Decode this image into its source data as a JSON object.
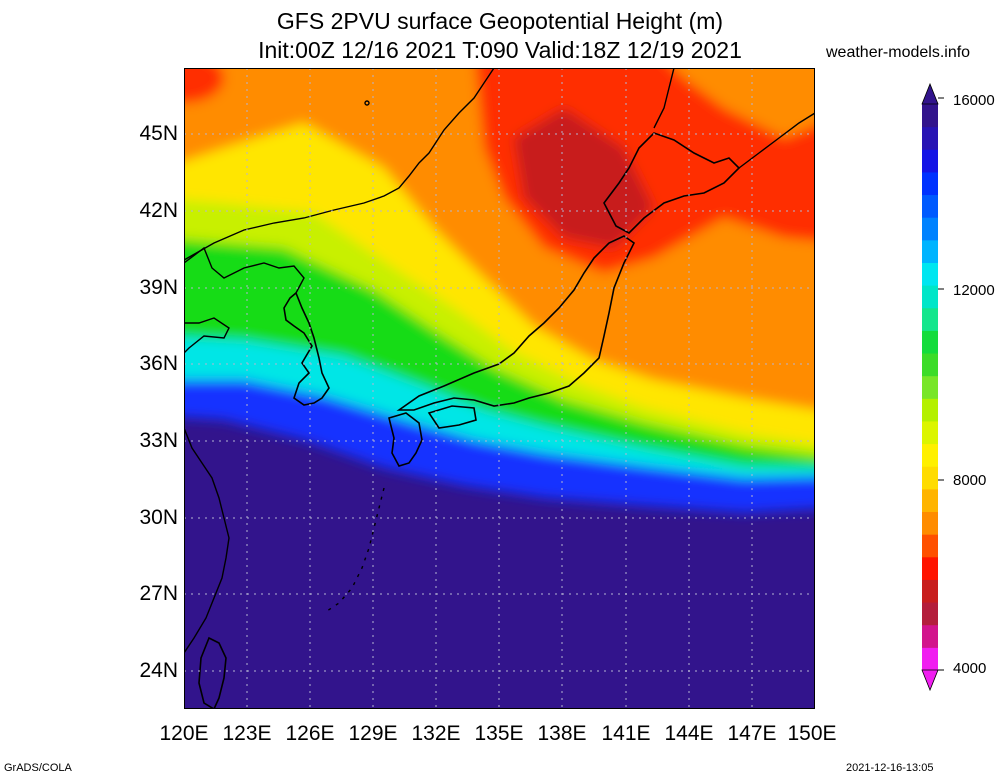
{
  "title_line1": "GFS 2PVU surface Geopotential Height (m)",
  "title_line2": "Init:00Z 12/16 2021 T:090 Valid:18Z 12/19 2021",
  "site": "weather-models.info",
  "footer_left": "GrADS/COLA",
  "footer_right": "2021-12-16-13:05",
  "map": {
    "lon_range": [
      120,
      150
    ],
    "lat_range": [
      22.5,
      47.5
    ],
    "lat_labels": [
      "45N",
      "42N",
      "39N",
      "36N",
      "33N",
      "30N",
      "27N",
      "24N"
    ],
    "lon_labels": [
      "120E",
      "123E",
      "126E",
      "129E",
      "132E",
      "135E",
      "138E",
      "141E",
      "144E",
      "147E",
      "150E"
    ],
    "gridlines": "dotted",
    "colors": {
      "red_core": "#c81e1e",
      "red": "#ff2d00",
      "orange": "#ff8c00",
      "yellow": "#ffe600",
      "yellow_green": "#c8f000",
      "green": "#14dc14",
      "cyan": "#00e6e6",
      "blue": "#1432ff",
      "navy": "#32148c",
      "coastline": "#000000"
    }
  },
  "colorbar": {
    "labels": [
      "16000",
      "12000",
      "8000",
      "4000"
    ],
    "colors": [
      "#f01ef0",
      "#d2148c",
      "#b41e3c",
      "#c81e1e",
      "#ff1400",
      "#ff5000",
      "#ff8c00",
      "#ffb400",
      "#ffdc00",
      "#fff000",
      "#dcf500",
      "#b4f000",
      "#78e628",
      "#3cdc28",
      "#14dc3c",
      "#14e68c",
      "#00e6c8",
      "#00e6f0",
      "#00b4ff",
      "#0082ff",
      "#005aff",
      "#0032ff",
      "#1414e6",
      "#2814b4",
      "#32148c"
    ]
  }
}
